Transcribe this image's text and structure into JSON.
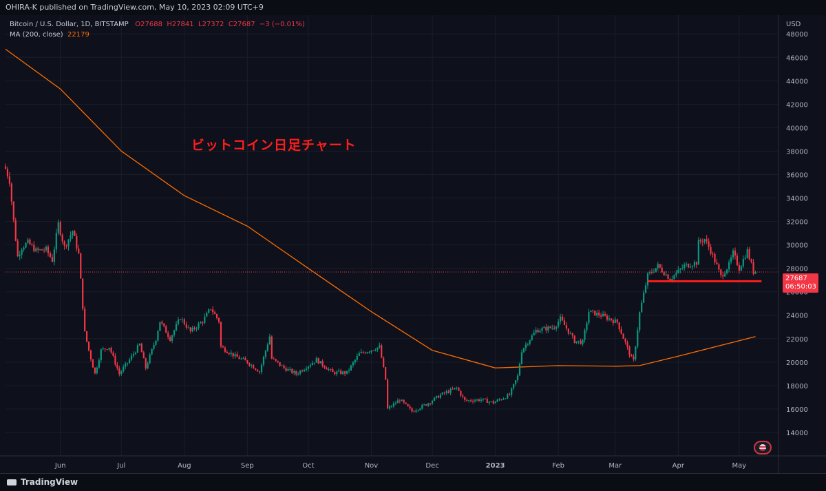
{
  "header": {
    "publisher": "OHIRA-K published on TradingView.com, May 10, 2023 02:09 UTC+9"
  },
  "legend": {
    "symbol": "Bitcoin / U.S. Dollar, 1D, BITSTAMP",
    "open": "O27688",
    "high": "H27841",
    "low": "L27372",
    "close": "C27687",
    "change": "−3 (−0.01%)",
    "ma_label": "MA (200, close)",
    "ma_value": "22179"
  },
  "annotation": "ビットコイン日足チャート",
  "price_label": {
    "price": "27687",
    "countdown": "06:50:03"
  },
  "footer": {
    "brand": "TradingView"
  },
  "colors": {
    "up": "#089981",
    "down": "#f23645",
    "ma": "#ff6d00",
    "support_line": "#ff1d1d",
    "background": "#0e111b",
    "grid": "#1a1e2a"
  },
  "chart_data": {
    "type": "candlestick",
    "title": "",
    "y_axis_label": "USD",
    "yticks": [
      14000,
      16000,
      18000,
      20000,
      22000,
      24000,
      26000,
      28000,
      30000,
      32000,
      34000,
      36000,
      38000,
      40000,
      42000,
      44000,
      46000,
      48000
    ],
    "ylim": [
      12000,
      49600
    ],
    "x_tick_labels": [
      "Jun",
      "Jul",
      "Aug",
      "Sep",
      "Oct",
      "Nov",
      "Dec",
      "2023",
      "Feb",
      "Mar",
      "Apr",
      "May"
    ],
    "x_tick_dates": [
      "2022-06-01",
      "2022-07-01",
      "2022-08-01",
      "2022-09-01",
      "2022-10-01",
      "2022-11-01",
      "2022-12-01",
      "2023-01-01",
      "2023-02-01",
      "2023-03-01",
      "2023-04-01",
      "2023-05-01"
    ],
    "xlim": [
      "2022-05-05",
      "2023-05-20"
    ],
    "close_anchors": [
      [
        "2022-05-05",
        36500
      ],
      [
        "2022-05-07",
        35500
      ],
      [
        "2022-05-09",
        32000
      ],
      [
        "2022-05-11",
        29000
      ],
      [
        "2022-05-13",
        29800
      ],
      [
        "2022-05-16",
        30200
      ],
      [
        "2022-05-20",
        29500
      ],
      [
        "2022-05-25",
        29600
      ],
      [
        "2022-05-28",
        28700
      ],
      [
        "2022-05-31",
        31800
      ],
      [
        "2022-06-03",
        29800
      ],
      [
        "2022-06-07",
        31200
      ],
      [
        "2022-06-10",
        29200
      ],
      [
        "2022-06-13",
        22500
      ],
      [
        "2022-06-15",
        21000
      ],
      [
        "2022-06-18",
        19000
      ],
      [
        "2022-06-21",
        21000
      ],
      [
        "2022-06-25",
        21300
      ],
      [
        "2022-06-30",
        19000
      ],
      [
        "2022-07-05",
        20200
      ],
      [
        "2022-07-10",
        21500
      ],
      [
        "2022-07-13",
        19500
      ],
      [
        "2022-07-18",
        22000
      ],
      [
        "2022-07-20",
        23500
      ],
      [
        "2022-07-25",
        22000
      ],
      [
        "2022-07-30",
        23800
      ],
      [
        "2022-08-04",
        22600
      ],
      [
        "2022-08-10",
        23500
      ],
      [
        "2022-08-14",
        24600
      ],
      [
        "2022-08-18",
        23500
      ],
      [
        "2022-08-19",
        21300
      ],
      [
        "2022-08-26",
        20500
      ],
      [
        "2022-09-01",
        20000
      ],
      [
        "2022-09-07",
        19200
      ],
      [
        "2022-09-12",
        22200
      ],
      [
        "2022-09-13",
        20300
      ],
      [
        "2022-09-19",
        19500
      ],
      [
        "2022-09-25",
        19000
      ],
      [
        "2022-10-05",
        20200
      ],
      [
        "2022-10-13",
        19100
      ],
      [
        "2022-10-20",
        19100
      ],
      [
        "2022-10-26",
        20700
      ],
      [
        "2022-11-05",
        21300
      ],
      [
        "2022-11-08",
        18500
      ],
      [
        "2022-11-09",
        16000
      ],
      [
        "2022-11-15",
        16800
      ],
      [
        "2022-11-21",
        15800
      ],
      [
        "2022-11-28",
        16400
      ],
      [
        "2022-12-05",
        17200
      ],
      [
        "2022-12-13",
        17800
      ],
      [
        "2022-12-17",
        16700
      ],
      [
        "2022-12-25",
        16800
      ],
      [
        "2022-12-31",
        16550
      ],
      [
        "2023-01-08",
        17200
      ],
      [
        "2023-01-12",
        18800
      ],
      [
        "2023-01-14",
        21000
      ],
      [
        "2023-01-21",
        22700
      ],
      [
        "2023-01-30",
        23000
      ],
      [
        "2023-02-02",
        23700
      ],
      [
        "2023-02-09",
        21800
      ],
      [
        "2023-02-13",
        21700
      ],
      [
        "2023-02-16",
        24300
      ],
      [
        "2023-02-22",
        24000
      ],
      [
        "2023-03-02",
        23400
      ],
      [
        "2023-03-09",
        20300
      ],
      [
        "2023-03-10",
        20100
      ],
      [
        "2023-03-13",
        24200
      ],
      [
        "2023-03-17",
        27400
      ],
      [
        "2023-03-22",
        28200
      ],
      [
        "2023-03-28",
        27100
      ],
      [
        "2023-04-04",
        28200
      ],
      [
        "2023-04-10",
        28500
      ],
      [
        "2023-04-11",
        30200
      ],
      [
        "2023-04-14",
        30500
      ],
      [
        "2023-04-17",
        29500
      ],
      [
        "2023-04-20",
        28200
      ],
      [
        "2023-04-22",
        27300
      ],
      [
        "2023-04-26",
        28300
      ],
      [
        "2023-04-28",
        29300
      ],
      [
        "2023-05-01",
        28000
      ],
      [
        "2023-05-05",
        29500
      ],
      [
        "2023-05-08",
        27700
      ],
      [
        "2023-05-09",
        27687
      ]
    ],
    "ma_series": {
      "name": "MA (200, close)",
      "points": [
        [
          "2022-05-05",
          46700
        ],
        [
          "2022-06-01",
          43300
        ],
        [
          "2022-07-01",
          38000
        ],
        [
          "2022-08-01",
          34200
        ],
        [
          "2022-09-01",
          31600
        ],
        [
          "2022-10-01",
          28000
        ],
        [
          "2022-11-01",
          24300
        ],
        [
          "2022-12-01",
          21000
        ],
        [
          "2023-01-01",
          19500
        ],
        [
          "2023-02-01",
          19700
        ],
        [
          "2023-03-01",
          19650
        ],
        [
          "2023-03-13",
          19700
        ],
        [
          "2023-04-01",
          20500
        ],
        [
          "2023-05-09",
          22179
        ]
      ]
    },
    "last_price": 27687,
    "support_level": {
      "value": 26900,
      "from": "2023-03-17",
      "to": "2023-05-12"
    }
  }
}
